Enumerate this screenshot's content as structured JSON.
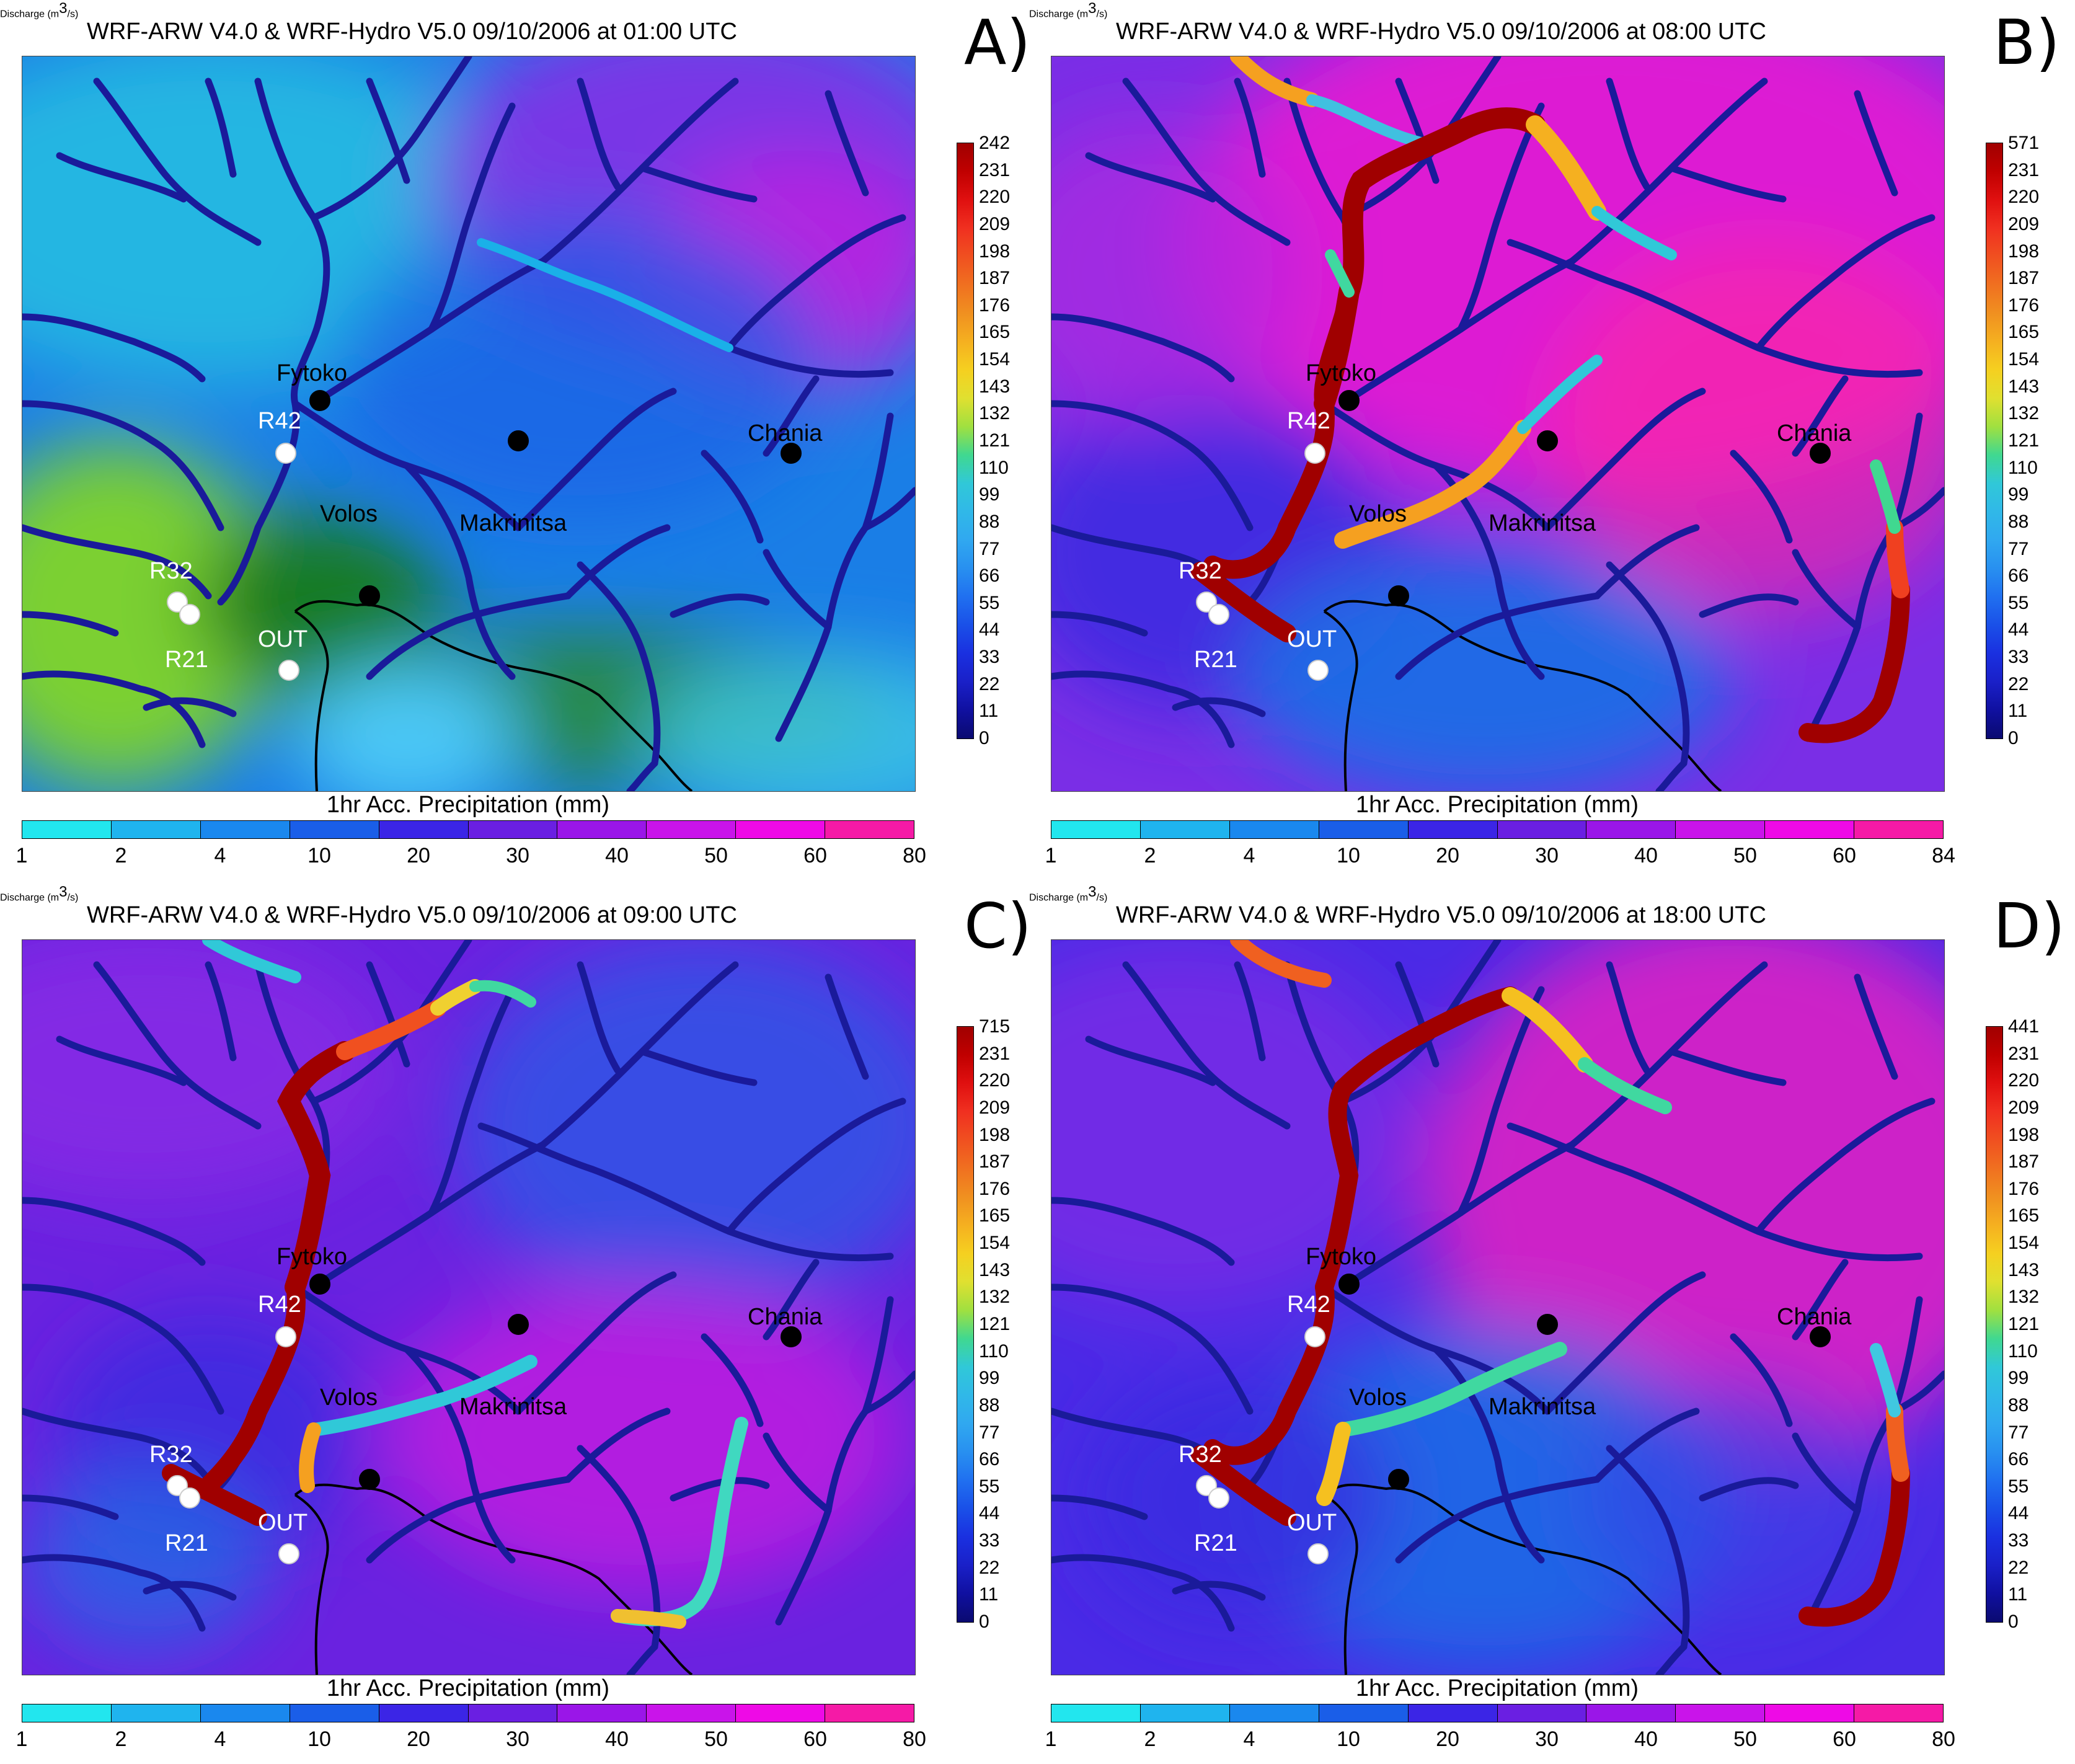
{
  "panels": [
    {
      "title": "WRF-ARW V4.0 & WRF-Hydro V5.0      09/10/2006 at 01:00 UTC",
      "letter": "A)",
      "discharge_max_label": "242",
      "precip_top_label": "80",
      "scenario": "A"
    },
    {
      "title": "WRF-ARW V4.0 & WRF-Hydro V5.0      09/10/2006 at 08:00 UTC",
      "letter": "B)",
      "discharge_max_label": "571",
      "precip_top_label": "84",
      "scenario": "B"
    },
    {
      "title": "WRF-ARW V4.0 & WRF-Hydro V5.0      09/10/2006 at 09:00 UTC",
      "letter": "C)",
      "discharge_max_label": "715",
      "precip_top_label": "80",
      "scenario": "C"
    },
    {
      "title": "WRF-ARW V4.0 & WRF-Hydro V5.0      09/10/2006 at 18:00 UTC",
      "letter": "D)",
      "discharge_max_label": "441",
      "precip_top_label": "80",
      "scenario": "D"
    }
  ],
  "discharge_colorbar": {
    "label_prefix": "Discharge (m",
    "label_sup": "3",
    "label_suffix": "/s)",
    "ticks": [
      "231",
      "220",
      "209",
      "198",
      "187",
      "176",
      "165",
      "154",
      "143",
      "132",
      "121",
      "110",
      "99",
      "88",
      "77",
      "66",
      "55",
      "44",
      "33",
      "22",
      "11",
      "0"
    ]
  },
  "precip_colorbar": {
    "label": "1hr Acc. Precipitation (mm)",
    "ticks": [
      "1",
      "2",
      "4",
      "10",
      "20",
      "30",
      "40",
      "50",
      "60"
    ],
    "colors": [
      "#22e6ee",
      "#1fb4ee",
      "#1a88ee",
      "#1a5ee8",
      "#3b25e6",
      "#6a1fe2",
      "#9a16e8",
      "#c914ea",
      "#ee0ae6",
      "#f51aa6"
    ]
  },
  "places": {
    "fytoko": "Fytoko",
    "volos": "Volos",
    "makrinitsa": "Makrinitsa",
    "chania": "Chania",
    "r42": "R42",
    "r32": "R32",
    "r21": "R21",
    "out": "OUT"
  }
}
